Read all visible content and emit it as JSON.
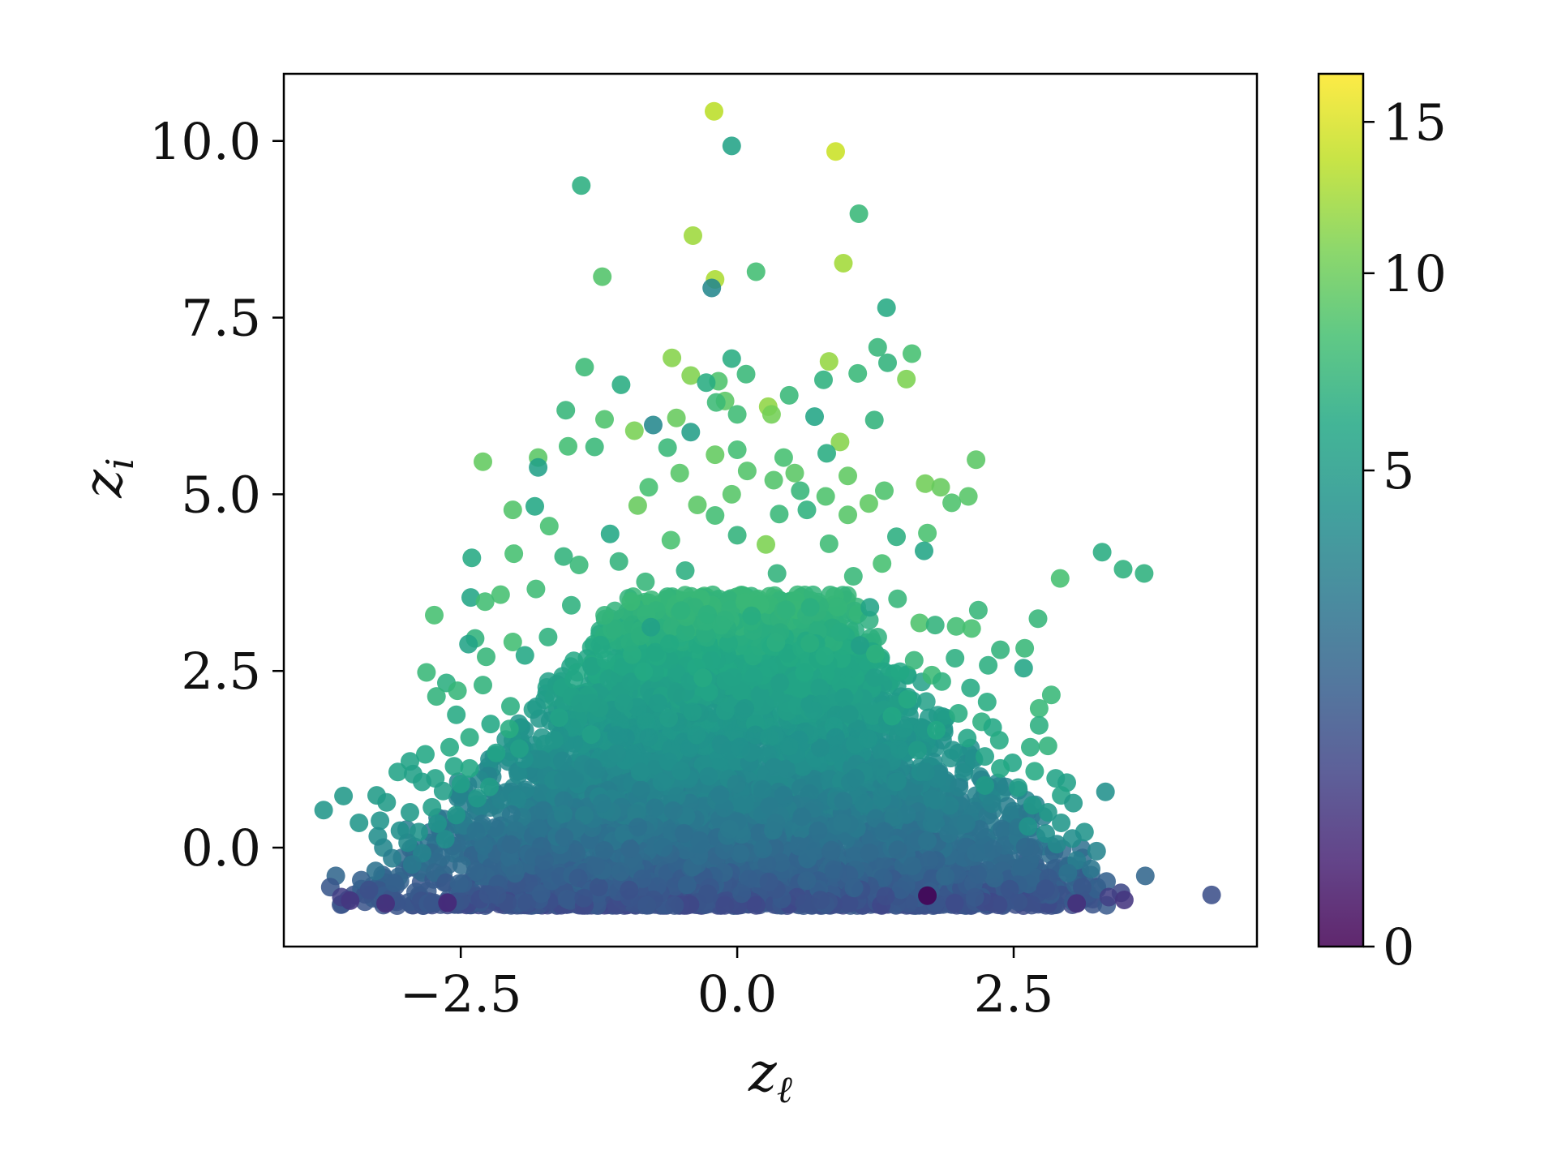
{
  "chart_data": {
    "type": "scatter",
    "title": "",
    "xlabel": "z_ℓ",
    "ylabel": "z_i",
    "xlim": [
      -4.1,
      4.7
    ],
    "ylim": [
      -1.4,
      10.95
    ],
    "xticks": [
      -2.5,
      0.0,
      2.5
    ],
    "xtick_labels": [
      "−2.5",
      "0.0",
      "2.5"
    ],
    "yticks": [
      0.0,
      2.5,
      5.0,
      7.5,
      10.0
    ],
    "ytick_labels": [
      "0.0",
      "2.5",
      "5.0",
      "7.5",
      "10.0"
    ],
    "grid": false,
    "legend": "none",
    "colorbar": {
      "colormap": "viridis",
      "range": [
        0,
        16.8
      ],
      "ticks": [
        0,
        5,
        10,
        15
      ],
      "tick_labels": [
        "0",
        "5",
        "10",
        "15"
      ],
      "colors": [
        "#440154",
        "#3b528b",
        "#21918c",
        "#5ec962",
        "#fde725"
      ]
    },
    "points": [
      {
        "x": -0.21,
        "y": 10.42,
        "c": 13.5
      },
      {
        "x": -0.05,
        "y": 9.93,
        "c": 5.6
      },
      {
        "x": 0.89,
        "y": 9.85,
        "c": 14.2
      },
      {
        "x": -1.41,
        "y": 9.37,
        "c": 6.6
      },
      {
        "x": 1.1,
        "y": 8.97,
        "c": 7.4
      },
      {
        "x": -0.4,
        "y": 8.66,
        "c": 12.2
      },
      {
        "x": 0.96,
        "y": 8.27,
        "c": 12.4
      },
      {
        "x": 0.17,
        "y": 8.15,
        "c": 8.0
      },
      {
        "x": -1.22,
        "y": 8.08,
        "c": 8.8
      },
      {
        "x": -0.2,
        "y": 8.04,
        "c": 12.8
      },
      {
        "x": -0.23,
        "y": 7.92,
        "c": 3.6
      },
      {
        "x": 1.35,
        "y": 7.64,
        "c": 6.2
      },
      {
        "x": 1.27,
        "y": 7.08,
        "c": 7.2
      },
      {
        "x": 1.58,
        "y": 6.99,
        "c": 8.2
      },
      {
        "x": -0.05,
        "y": 6.92,
        "c": 6.4
      },
      {
        "x": -0.59,
        "y": 6.93,
        "c": 11.2
      },
      {
        "x": 0.83,
        "y": 6.88,
        "c": 11.8
      },
      {
        "x": 1.36,
        "y": 6.86,
        "c": 7.0
      },
      {
        "x": -1.38,
        "y": 6.8,
        "c": 7.6
      },
      {
        "x": 1.09,
        "y": 6.71,
        "c": 7.4
      },
      {
        "x": 0.08,
        "y": 6.7,
        "c": 7.4
      },
      {
        "x": -0.42,
        "y": 6.68,
        "c": 11.0
      },
      {
        "x": 0.78,
        "y": 6.62,
        "c": 6.8
      },
      {
        "x": -0.17,
        "y": 6.6,
        "c": 8.6
      },
      {
        "x": -0.28,
        "y": 6.58,
        "c": 6.4
      },
      {
        "x": -1.05,
        "y": 6.55,
        "c": 6.4
      },
      {
        "x": 1.53,
        "y": 6.63,
        "c": 10.8
      },
      {
        "x": 0.47,
        "y": 6.4,
        "c": 7.4
      },
      {
        "x": -0.11,
        "y": 6.32,
        "c": 9.2
      },
      {
        "x": 0.28,
        "y": 6.24,
        "c": 11.6
      },
      {
        "x": -0.19,
        "y": 6.3,
        "c": 7.6
      },
      {
        "x": -1.55,
        "y": 6.19,
        "c": 7.2
      },
      {
        "x": 0.31,
        "y": 6.13,
        "c": 10.4
      },
      {
        "x": 0.0,
        "y": 6.13,
        "c": 7.8
      },
      {
        "x": -1.2,
        "y": 6.06,
        "c": 8.6
      },
      {
        "x": -0.55,
        "y": 6.08,
        "c": 9.8
      },
      {
        "x": 0.7,
        "y": 6.1,
        "c": 5.8
      },
      {
        "x": 1.24,
        "y": 6.05,
        "c": 7.0
      },
      {
        "x": -0.76,
        "y": 5.98,
        "c": 3.6
      },
      {
        "x": -0.93,
        "y": 5.9,
        "c": 10.6
      },
      {
        "x": -0.42,
        "y": 5.88,
        "c": 5.2
      },
      {
        "x": 0.93,
        "y": 5.74,
        "c": 11.2
      },
      {
        "x": -1.53,
        "y": 5.68,
        "c": 8.0
      },
      {
        "x": -1.29,
        "y": 5.67,
        "c": 7.4
      },
      {
        "x": -0.63,
        "y": 5.66,
        "c": 7.4
      },
      {
        "x": 0.0,
        "y": 5.63,
        "c": 8.0
      },
      {
        "x": 0.81,
        "y": 5.58,
        "c": 6.4
      },
      {
        "x": -0.2,
        "y": 5.56,
        "c": 9.6
      },
      {
        "x": 0.42,
        "y": 5.52,
        "c": 8.2
      },
      {
        "x": 2.16,
        "y": 5.49,
        "c": 9.2
      },
      {
        "x": -2.3,
        "y": 5.46,
        "c": 9.6
      },
      {
        "x": -1.8,
        "y": 5.52,
        "c": 9.2
      },
      {
        "x": -1.8,
        "y": 5.38,
        "c": 5.4
      },
      {
        "x": 0.09,
        "y": 5.33,
        "c": 8.8
      },
      {
        "x": 0.52,
        "y": 5.3,
        "c": 9.2
      },
      {
        "x": -0.52,
        "y": 5.3,
        "c": 9.0
      },
      {
        "x": 1.0,
        "y": 5.26,
        "c": 9.4
      },
      {
        "x": 0.33,
        "y": 5.2,
        "c": 8.8
      },
      {
        "x": 1.7,
        "y": 5.15,
        "c": 10.2
      },
      {
        "x": 1.84,
        "y": 5.1,
        "c": 9.8
      },
      {
        "x": -0.8,
        "y": 5.1,
        "c": 8.2
      },
      {
        "x": 0.57,
        "y": 5.05,
        "c": 7.2
      },
      {
        "x": 1.33,
        "y": 5.05,
        "c": 8.6
      },
      {
        "x": -0.05,
        "y": 5.0,
        "c": 9.0
      },
      {
        "x": 2.09,
        "y": 4.97,
        "c": 9.0
      },
      {
        "x": 0.8,
        "y": 4.97,
        "c": 8.6
      },
      {
        "x": 1.94,
        "y": 4.88,
        "c": 8.6
      },
      {
        "x": 1.19,
        "y": 4.87,
        "c": 9.4
      },
      {
        "x": -0.36,
        "y": 4.85,
        "c": 9.2
      },
      {
        "x": -0.9,
        "y": 4.84,
        "c": 9.8
      },
      {
        "x": -2.03,
        "y": 4.78,
        "c": 8.8
      },
      {
        "x": -1.83,
        "y": 4.83,
        "c": 6.0
      },
      {
        "x": 0.63,
        "y": 4.78,
        "c": 6.8
      },
      {
        "x": 1.0,
        "y": 4.71,
        "c": 9.0
      },
      {
        "x": -0.2,
        "y": 4.7,
        "c": 8.0
      },
      {
        "x": 0.38,
        "y": 4.72,
        "c": 7.4
      },
      {
        "x": -1.7,
        "y": 4.55,
        "c": 8.2
      },
      {
        "x": 1.72,
        "y": 4.45,
        "c": 8.4
      },
      {
        "x": -1.15,
        "y": 4.44,
        "c": 6.0
      },
      {
        "x": 0.0,
        "y": 4.42,
        "c": 7.0
      },
      {
        "x": 1.44,
        "y": 4.4,
        "c": 6.6
      },
      {
        "x": -0.6,
        "y": 4.35,
        "c": 8.4
      },
      {
        "x": 0.83,
        "y": 4.3,
        "c": 7.8
      },
      {
        "x": 0.26,
        "y": 4.29,
        "c": 10.8
      },
      {
        "x": 1.69,
        "y": 4.2,
        "c": 5.8
      },
      {
        "x": 3.3,
        "y": 4.18,
        "c": 6.4
      },
      {
        "x": -2.02,
        "y": 4.16,
        "c": 8.2
      },
      {
        "x": -1.57,
        "y": 4.12,
        "c": 7.0
      },
      {
        "x": -2.4,
        "y": 4.1,
        "c": 6.2
      },
      {
        "x": -1.07,
        "y": 4.05,
        "c": 7.0
      },
      {
        "x": 1.31,
        "y": 4.02,
        "c": 8.2
      },
      {
        "x": -1.43,
        "y": 4.0,
        "c": 7.4
      },
      {
        "x": 3.49,
        "y": 3.94,
        "c": 6.8
      },
      {
        "x": 3.68,
        "y": 3.88,
        "c": 6.8
      },
      {
        "x": -0.47,
        "y": 3.92,
        "c": 6.6
      },
      {
        "x": 0.36,
        "y": 3.88,
        "c": 7.0
      },
      {
        "x": 1.05,
        "y": 3.84,
        "c": 7.4
      },
      {
        "x": 2.92,
        "y": 3.81,
        "c": 8.2
      },
      {
        "x": -0.83,
        "y": 3.76,
        "c": 7.2
      },
      {
        "x": -1.82,
        "y": 3.66,
        "c": 7.8
      },
      {
        "x": -2.14,
        "y": 3.58,
        "c": 8.2
      },
      {
        "x": -2.41,
        "y": 3.54,
        "c": 5.8
      },
      {
        "x": -2.28,
        "y": 3.48,
        "c": 8.0
      },
      {
        "x": 1.45,
        "y": 3.52,
        "c": 7.2
      },
      {
        "x": -1.5,
        "y": 3.43,
        "c": 6.8
      },
      {
        "x": 0.66,
        "y": 3.4,
        "c": 6.6
      },
      {
        "x": 1.2,
        "y": 3.4,
        "c": 5.6
      },
      {
        "x": 2.18,
        "y": 3.36,
        "c": 7.2
      },
      {
        "x": -2.74,
        "y": 3.29,
        "c": 8.2
      },
      {
        "x": -0.27,
        "y": 3.3,
        "c": 6.8
      },
      {
        "x": 0.13,
        "y": 3.28,
        "c": 6.4
      },
      {
        "x": 2.72,
        "y": 3.24,
        "c": 7.2
      },
      {
        "x": 1.65,
        "y": 3.18,
        "c": 8.6
      },
      {
        "x": 1.79,
        "y": 3.15,
        "c": 7.0
      },
      {
        "x": -0.78,
        "y": 3.12,
        "c": 5.4
      },
      {
        "x": 1.98,
        "y": 3.13,
        "c": 8.0
      },
      {
        "x": 2.12,
        "y": 3.1,
        "c": 8.2
      },
      {
        "x": 0.93,
        "y": 3.05,
        "c": 6.4
      },
      {
        "x": -1.71,
        "y": 2.98,
        "c": 6.8
      },
      {
        "x": -2.37,
        "y": 2.96,
        "c": 7.0
      },
      {
        "x": -2.43,
        "y": 2.88,
        "c": 5.6
      },
      {
        "x": -2.03,
        "y": 2.91,
        "c": 8.0
      },
      {
        "x": 0.35,
        "y": 2.9,
        "c": 6.6
      },
      {
        "x": 1.11,
        "y": 2.86,
        "c": 5.2
      },
      {
        "x": 2.38,
        "y": 2.8,
        "c": 7.0
      },
      {
        "x": 2.6,
        "y": 2.82,
        "c": 7.4
      },
      {
        "x": 1.25,
        "y": 2.74,
        "c": 6.8
      },
      {
        "x": -0.95,
        "y": 2.73,
        "c": 6.4
      },
      {
        "x": -2.27,
        "y": 2.7,
        "c": 7.2
      },
      {
        "x": -1.92,
        "y": 2.72,
        "c": 6.0
      },
      {
        "x": 1.97,
        "y": 2.68,
        "c": 6.6
      },
      {
        "x": 1.6,
        "y": 2.65,
        "c": 7.2
      },
      {
        "x": 2.27,
        "y": 2.58,
        "c": 6.6
      },
      {
        "x": 2.59,
        "y": 2.54,
        "c": 5.8
      },
      {
        "x": -2.81,
        "y": 2.48,
        "c": 7.4
      },
      {
        "x": 1.76,
        "y": 2.44,
        "c": 7.6
      },
      {
        "x": -2.63,
        "y": 2.33,
        "c": 6.6
      },
      {
        "x": -0.31,
        "y": 2.4,
        "c": 6.2
      },
      {
        "x": 1.85,
        "y": 2.35,
        "c": 6.8
      },
      {
        "x": -2.3,
        "y": 2.3,
        "c": 7.0
      },
      {
        "x": 2.11,
        "y": 2.26,
        "c": 6.2
      },
      {
        "x": -2.53,
        "y": 2.22,
        "c": 7.2
      },
      {
        "x": 2.84,
        "y": 2.16,
        "c": 7.4
      },
      {
        "x": -2.72,
        "y": 2.14,
        "c": 7.0
      },
      {
        "x": 1.54,
        "y": 2.1,
        "c": 6.2
      },
      {
        "x": 2.26,
        "y": 2.06,
        "c": 6.4
      },
      {
        "x": -2.05,
        "y": 2.0,
        "c": 6.6
      },
      {
        "x": 2.73,
        "y": 1.97,
        "c": 7.4
      },
      {
        "x": 2.0,
        "y": 1.9,
        "c": 6.4
      },
      {
        "x": -2.54,
        "y": 1.88,
        "c": 6.2
      },
      {
        "x": 1.4,
        "y": 1.86,
        "c": 6.0
      },
      {
        "x": -1.61,
        "y": 1.84,
        "c": 5.6
      },
      {
        "x": 2.21,
        "y": 1.78,
        "c": 6.6
      },
      {
        "x": -2.23,
        "y": 1.75,
        "c": 6.0
      },
      {
        "x": 2.73,
        "y": 1.73,
        "c": 6.6
      },
      {
        "x": 2.31,
        "y": 1.7,
        "c": 6.0
      },
      {
        "x": -2.06,
        "y": 1.68,
        "c": 6.4
      },
      {
        "x": 1.8,
        "y": 1.66,
        "c": 6.0
      },
      {
        "x": -1.32,
        "y": 1.6,
        "c": 5.4
      },
      {
        "x": -2.42,
        "y": 1.56,
        "c": 6.4
      },
      {
        "x": 2.08,
        "y": 1.55,
        "c": 5.8
      },
      {
        "x": 2.37,
        "y": 1.52,
        "c": 6.2
      },
      {
        "x": -2.6,
        "y": 1.42,
        "c": 6.2
      },
      {
        "x": 2.65,
        "y": 1.42,
        "c": 6.6
      },
      {
        "x": -1.97,
        "y": 1.4,
        "c": 5.4
      },
      {
        "x": 1.63,
        "y": 1.38,
        "c": 5.0
      },
      {
        "x": 2.81,
        "y": 1.44,
        "c": 7.0
      },
      {
        "x": -2.82,
        "y": 1.32,
        "c": 6.0
      },
      {
        "x": -2.18,
        "y": 1.34,
        "c": 5.6
      },
      {
        "x": 2.24,
        "y": 1.29,
        "c": 5.6
      },
      {
        "x": -2.96,
        "y": 1.22,
        "c": 5.6
      },
      {
        "x": 2.49,
        "y": 1.2,
        "c": 5.8
      },
      {
        "x": -2.56,
        "y": 1.15,
        "c": 5.8
      },
      {
        "x": -2.42,
        "y": 1.12,
        "c": 6.0
      },
      {
        "x": 2.38,
        "y": 1.12,
        "c": 6.0
      },
      {
        "x": 2.69,
        "y": 1.08,
        "c": 6.2
      },
      {
        "x": -3.07,
        "y": 1.07,
        "c": 5.6
      },
      {
        "x": -2.93,
        "y": 1.04,
        "c": 5.4
      },
      {
        "x": -2.73,
        "y": 0.98,
        "c": 5.6
      },
      {
        "x": -2.85,
        "y": 0.93,
        "c": 5.4
      },
      {
        "x": 2.88,
        "y": 0.98,
        "c": 5.6
      },
      {
        "x": 2.98,
        "y": 0.92,
        "c": 5.4
      },
      {
        "x": -2.5,
        "y": 0.9,
        "c": 5.4
      },
      {
        "x": 2.24,
        "y": 0.88,
        "c": 5.0
      },
      {
        "x": -2.24,
        "y": 0.86,
        "c": 5.2
      },
      {
        "x": 2.54,
        "y": 0.85,
        "c": 5.2
      },
      {
        "x": -2.66,
        "y": 0.8,
        "c": 5.2
      },
      {
        "x": 3.33,
        "y": 0.79,
        "c": 4.2
      },
      {
        "x": -3.56,
        "y": 0.73,
        "c": 4.8
      },
      {
        "x": -3.26,
        "y": 0.74,
        "c": 5.0
      },
      {
        "x": 2.93,
        "y": 0.74,
        "c": 5.6
      },
      {
        "x": -2.35,
        "y": 0.7,
        "c": 4.8
      },
      {
        "x": -3.17,
        "y": 0.64,
        "c": 5.0
      },
      {
        "x": 3.04,
        "y": 0.63,
        "c": 4.8
      },
      {
        "x": 2.67,
        "y": 0.6,
        "c": 4.8
      },
      {
        "x": -2.76,
        "y": 0.57,
        "c": 5.2
      },
      {
        "x": -2.96,
        "y": 0.5,
        "c": 4.8
      },
      {
        "x": -3.74,
        "y": 0.53,
        "c": 4.6
      },
      {
        "x": 2.81,
        "y": 0.5,
        "c": 4.8
      },
      {
        "x": -2.54,
        "y": 0.46,
        "c": 4.6
      },
      {
        "x": -3.42,
        "y": 0.35,
        "c": 4.6
      },
      {
        "x": -3.23,
        "y": 0.38,
        "c": 4.4
      },
      {
        "x": 2.93,
        "y": 0.35,
        "c": 4.6
      },
      {
        "x": -2.71,
        "y": 0.34,
        "c": 4.4
      },
      {
        "x": 2.63,
        "y": 0.3,
        "c": 4.4
      },
      {
        "x": -3.05,
        "y": 0.24,
        "c": 4.2
      },
      {
        "x": -2.88,
        "y": 0.22,
        "c": 4.4
      },
      {
        "x": 3.14,
        "y": 0.22,
        "c": 4.4
      },
      {
        "x": 2.79,
        "y": 0.2,
        "c": 4.2
      },
      {
        "x": -3.25,
        "y": 0.16,
        "c": 4.0
      },
      {
        "x": -2.64,
        "y": 0.12,
        "c": 4.0
      },
      {
        "x": 3.03,
        "y": 0.13,
        "c": 4.0
      },
      {
        "x": -2.98,
        "y": 0.07,
        "c": 3.8
      },
      {
        "x": 2.89,
        "y": 0.05,
        "c": 3.8
      },
      {
        "x": -3.2,
        "y": 0.0,
        "c": 3.6
      },
      {
        "x": 3.25,
        "y": -0.05,
        "c": 3.4
      },
      {
        "x": -2.85,
        "y": -0.08,
        "c": 3.4
      },
      {
        "x": -3.12,
        "y": -0.15,
        "c": 3.0
      },
      {
        "x": 3.07,
        "y": -0.18,
        "c": 3.0
      },
      {
        "x": -2.94,
        "y": -0.24,
        "c": 2.8
      },
      {
        "x": 3.2,
        "y": -0.3,
        "c": 2.6
      },
      {
        "x": -3.27,
        "y": -0.33,
        "c": 2.4
      },
      {
        "x": 2.99,
        "y": -0.36,
        "c": 2.4
      },
      {
        "x": -3.63,
        "y": -0.4,
        "c": 1.8
      },
      {
        "x": 3.69,
        "y": -0.4,
        "c": 1.8
      },
      {
        "x": -3.4,
        "y": -0.46,
        "c": 1.6
      },
      {
        "x": 3.34,
        "y": -0.48,
        "c": 1.6
      },
      {
        "x": -3.1,
        "y": -0.5,
        "c": 1.6
      },
      {
        "x": -3.68,
        "y": -0.56,
        "c": 1.2
      },
      {
        "x": 3.12,
        "y": -0.56,
        "c": 1.2
      },
      {
        "x": -3.33,
        "y": -0.6,
        "c": 1.0
      },
      {
        "x": 3.47,
        "y": -0.64,
        "c": 0.8
      },
      {
        "x": 4.29,
        "y": -0.67,
        "c": 1.0
      },
      {
        "x": -3.58,
        "y": -0.7,
        "c": 0.6
      },
      {
        "x": 3.36,
        "y": -0.7,
        "c": 0.6
      },
      {
        "x": -3.5,
        "y": -0.75,
        "c": 0.4
      },
      {
        "x": 3.5,
        "y": -0.74,
        "c": 0.4
      },
      {
        "x": 3.07,
        "y": -0.79,
        "c": 0.3
      },
      {
        "x": -3.18,
        "y": -0.79,
        "c": 0.3
      },
      {
        "x": 1.72,
        "y": -0.68,
        "c": 0.0
      },
      {
        "x": -2.62,
        "y": -0.78,
        "c": 0.2
      }
    ]
  }
}
